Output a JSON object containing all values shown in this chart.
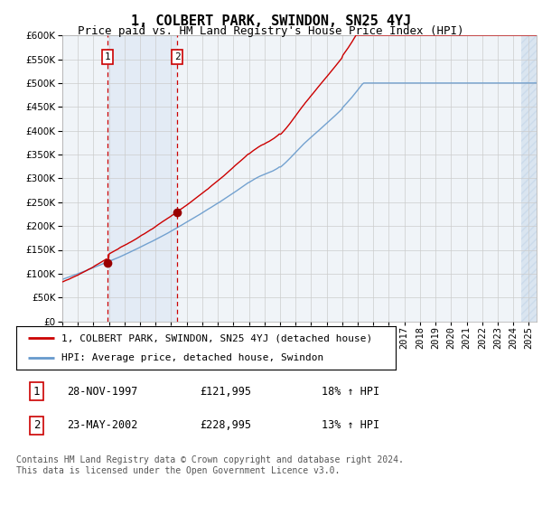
{
  "title": "1, COLBERT PARK, SWINDON, SN25 4YJ",
  "subtitle": "Price paid vs. HM Land Registry's House Price Index (HPI)",
  "ylim": [
    0,
    600000
  ],
  "yticks": [
    0,
    50000,
    100000,
    150000,
    200000,
    250000,
    300000,
    350000,
    400000,
    450000,
    500000,
    550000,
    600000
  ],
  "xlim_start": 1995.0,
  "xlim_end": 2025.5,
  "sale1_date": 1997.91,
  "sale1_price": 121995,
  "sale2_date": 2002.39,
  "sale2_price": 228995,
  "sale1_label": "1",
  "sale2_label": "2",
  "hpi_color": "#6699cc",
  "price_color": "#cc0000",
  "sale_dot_color": "#990000",
  "vline_color": "#cc0000",
  "span_color": "#ccddf0",
  "hatch_color": "#aac4e0",
  "grid_color": "#cccccc",
  "background_color": "#ffffff",
  "plot_bg_color": "#f0f4f8",
  "legend_line1": "1, COLBERT PARK, SWINDON, SN25 4YJ (detached house)",
  "legend_line2": "HPI: Average price, detached house, Swindon",
  "table_row1": [
    "1",
    "28-NOV-1997",
    "£121,995",
    "18% ↑ HPI"
  ],
  "table_row2": [
    "2",
    "23-MAY-2002",
    "£228,995",
    "13% ↑ HPI"
  ],
  "footnote": "Contains HM Land Registry data © Crown copyright and database right 2024.\nThis data is licensed under the Open Government Licence v3.0.",
  "title_fontsize": 11,
  "subtitle_fontsize": 9,
  "tick_fontsize": 7.5,
  "legend_fontsize": 8,
  "table_fontsize": 8.5,
  "footnote_fontsize": 7
}
